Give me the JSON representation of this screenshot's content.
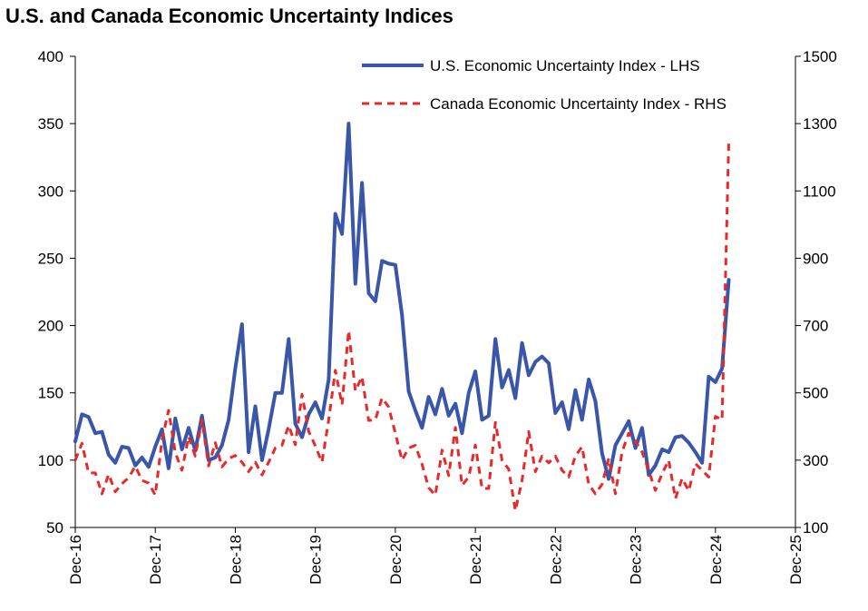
{
  "chart_data": {
    "type": "line",
    "title": "U.S. and Canada Economic Uncertainty Indices",
    "x_start": "2016-12",
    "x_ticks": [
      "Dec-16",
      "Dec-17",
      "Dec-18",
      "Dec-19",
      "Dec-20",
      "Dec-21",
      "Dec-22",
      "Dec-23",
      "Dec-24",
      "Dec-25"
    ],
    "y_left": {
      "ticks": [
        50,
        100,
        150,
        200,
        250,
        300,
        350,
        400
      ],
      "lim": [
        50,
        400
      ]
    },
    "y_right": {
      "ticks": [
        100,
        300,
        500,
        700,
        900,
        1100,
        1300,
        1500
      ],
      "lim": [
        100,
        1500
      ]
    },
    "legend_position": "top-right",
    "grid": false,
    "series": [
      {
        "name": "U.S. Economic Uncertainty Index - LHS",
        "axis": "left",
        "color": "#3a56a8",
        "style": "solid",
        "values": [
          114,
          134,
          132,
          120,
          121,
          104,
          98,
          110,
          109,
          96,
          102,
          95,
          110,
          123,
          94,
          131,
          108,
          124,
          107,
          133,
          100,
          102,
          111,
          130,
          168,
          201,
          106,
          140,
          100,
          123,
          150,
          150,
          190,
          127,
          117,
          134,
          143,
          131,
          160,
          283,
          268,
          350,
          231,
          306,
          224,
          218,
          248,
          246,
          245,
          208,
          151,
          137,
          124,
          147,
          134,
          153,
          133,
          142,
          120,
          150,
          166,
          130,
          133,
          190,
          154,
          167,
          146,
          187,
          163,
          173,
          177,
          172,
          135,
          143,
          123,
          152,
          130,
          160,
          144,
          105,
          86,
          111,
          120,
          129,
          109,
          124,
          89,
          96,
          108,
          106,
          117,
          118,
          113,
          106,
          98,
          162,
          158,
          168,
          234
        ]
      },
      {
        "name": "Canada Economic Uncertainty Index - RHS",
        "axis": "right",
        "color": "#e8292a",
        "style": "dashed",
        "values": [
          300,
          350,
          262,
          262,
          200,
          258,
          206,
          230,
          248,
          282,
          240,
          232,
          196,
          360,
          448,
          322,
          270,
          370,
          312,
          420,
          283,
          352,
          280,
          305,
          314,
          294,
          266,
          294,
          256,
          294,
          336,
          344,
          403,
          346,
          496,
          386,
          342,
          294,
          420,
          567,
          465,
          685,
          506,
          548,
          418,
          420,
          485,
          458,
          380,
          300,
          336,
          344,
          288,
          218,
          196,
          330,
          254,
          397,
          225,
          250,
          345,
          216,
          216,
          412,
          300,
          273,
          150,
          240,
          385,
          266,
          312,
          292,
          312,
          270,
          250,
          312,
          340,
          228,
          200,
          228,
          305,
          200,
          325,
          380,
          356,
          325,
          268,
          210,
          260,
          300,
          186,
          246,
          209,
          290,
          270,
          250,
          430,
          420,
          1250
        ]
      }
    ]
  }
}
